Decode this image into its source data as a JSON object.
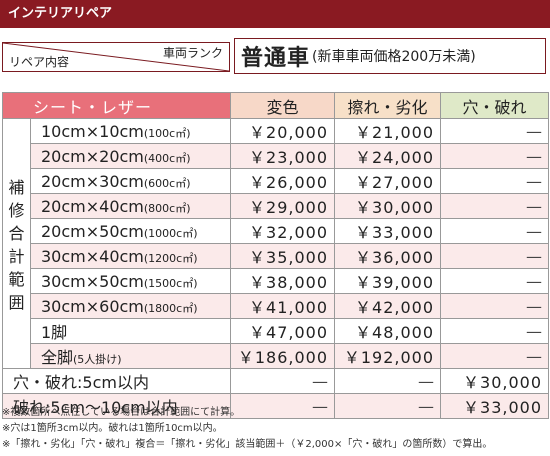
{
  "header": {
    "title": "インテリアリペア"
  },
  "rank": {
    "top_label": "車両ランク",
    "bottom_label": "リペア内容",
    "value_main": "普通車",
    "value_sub": "(新車車両価格200万未満)"
  },
  "columns": {
    "seat": "シート・レザー",
    "col1": "変色",
    "col2": "擦れ・劣化",
    "col3": "穴・破れ"
  },
  "side_label": [
    "補",
    "修",
    "合",
    "計",
    "範",
    "囲"
  ],
  "rows": [
    {
      "main": "10cm×10cm",
      "note": "(100c㎡)",
      "c1": "￥20,000",
      "c2": "￥21,000",
      "c3": "—"
    },
    {
      "main": "20cm×20cm",
      "note": "(400c㎡)",
      "c1": "￥23,000",
      "c2": "￥24,000",
      "c3": "—"
    },
    {
      "main": "20cm×30cm",
      "note": "(600c㎡)",
      "c1": "￥26,000",
      "c2": "￥27,000",
      "c3": "—"
    },
    {
      "main": "20cm×40cm",
      "note": "(800c㎡)",
      "c1": "￥29,000",
      "c2": "￥30,000",
      "c3": "—"
    },
    {
      "main": "20cm×50cm",
      "note": "(1000c㎡)",
      "c1": "￥32,000",
      "c2": "￥33,000",
      "c3": "—"
    },
    {
      "main": "30cm×40cm",
      "note": "(1200c㎡)",
      "c1": "￥35,000",
      "c2": "￥36,000",
      "c3": "—"
    },
    {
      "main": "30cm×50cm",
      "note": "(1500c㎡)",
      "c1": "￥38,000",
      "c2": "￥39,000",
      "c3": "—"
    },
    {
      "main": "30cm×60cm",
      "note": "(1800c㎡)",
      "c1": "￥41,000",
      "c2": "￥42,000",
      "c3": "—"
    },
    {
      "main": "1脚",
      "note": "",
      "c1": "￥47,000",
      "c2": "￥48,000",
      "c3": "—"
    },
    {
      "main": "全脚",
      "note": "(5人掛け)",
      "c1": "￥186,000",
      "c2": "￥192,000",
      "c3": "—"
    }
  ],
  "extra_rows": [
    {
      "main": "穴・破れ:5cm以内",
      "c1": "—",
      "c2": "—",
      "c3": "￥30,000"
    },
    {
      "main": "破れ:5cm～10cm以内",
      "c1": "—",
      "c2": "—",
      "c3": "￥33,000"
    }
  ],
  "footnotes": [
    "※複数箇所へ点在している場合は合計範囲にて計算。",
    "※穴は1箇所3cm以内。破れは1箇所10cm以内。",
    "※「擦れ・劣化」「穴・破れ」複合＝「擦れ・劣化」該当範囲＋（￥2,000×「穴・破れ」の箇所数）で算出。"
  ],
  "colors": {
    "header_bg": "#8a1a22",
    "seat_header": "#e8707a",
    "col1_header": "#f7d8c8",
    "col2_header": "#f7e0c8",
    "col3_header": "#dfe9c8",
    "row_shade": "#fbeaea"
  }
}
